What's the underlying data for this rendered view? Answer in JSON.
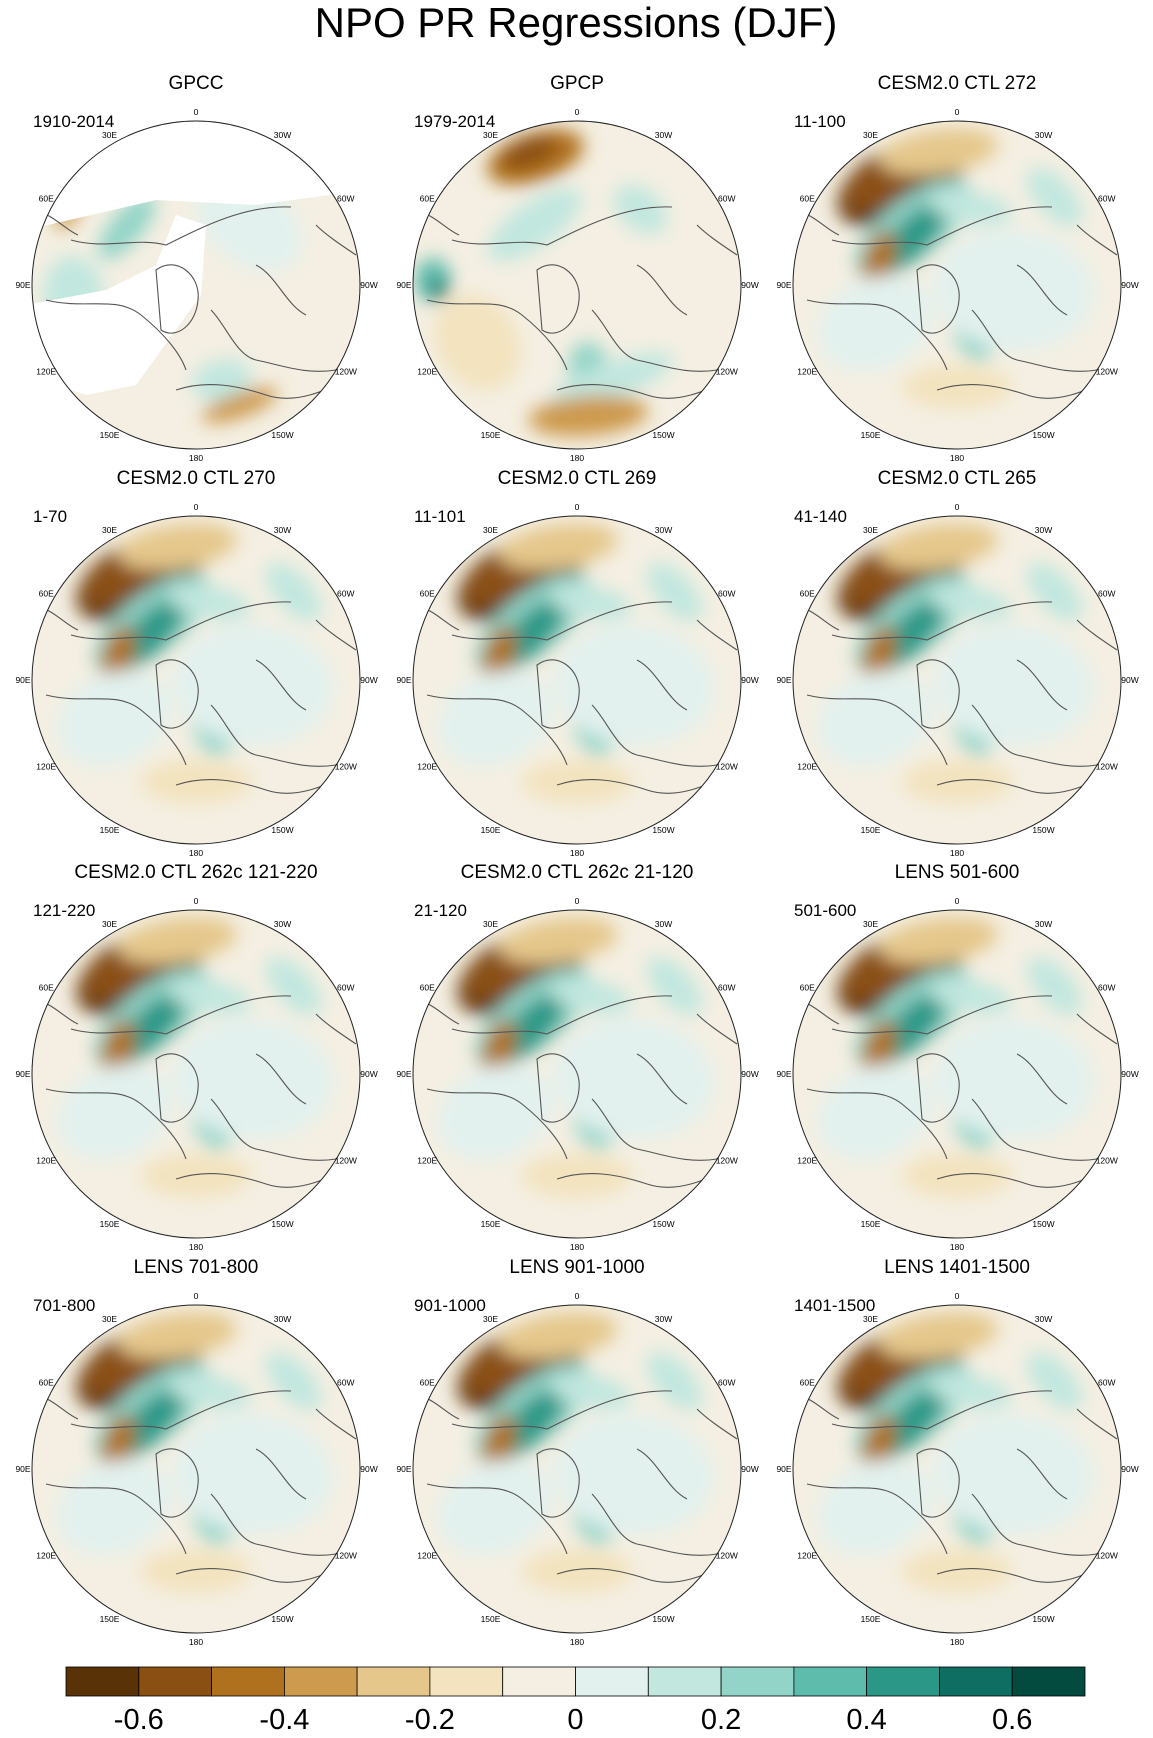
{
  "chart_data": {
    "type": "heatmap",
    "title": "NPO PR Regressions (DJF)",
    "projection": "north-polar-stereographic",
    "longitude_labels": [
      "180",
      "150E",
      "120E",
      "90E",
      "60E",
      "30E",
      "0",
      "30W",
      "60W",
      "90W",
      "120W",
      "150W"
    ],
    "longitude_degrees": [
      180,
      150,
      120,
      90,
      60,
      30,
      0,
      -30,
      -60,
      -90,
      -120,
      -150
    ],
    "panels": [
      {
        "title": "GPCC",
        "period": "1910-2014",
        "pattern": "gpcc"
      },
      {
        "title": "GPCP",
        "period": "1979-2014",
        "pattern": "gpcp"
      },
      {
        "title": "CESM2.0 CTL 272",
        "period": "11-100",
        "pattern": "model"
      },
      {
        "title": "CESM2.0 CTL 270",
        "period": "1-70",
        "pattern": "model"
      },
      {
        "title": "CESM2.0 CTL 269",
        "period": "11-101",
        "pattern": "model"
      },
      {
        "title": "CESM2.0 CTL 265",
        "period": "41-140",
        "pattern": "model"
      },
      {
        "title": "CESM2.0 CTL 262c 121-220",
        "period": "121-220",
        "pattern": "model"
      },
      {
        "title": "CESM2.0 CTL 262c 21-120",
        "period": "21-120",
        "pattern": "model"
      },
      {
        "title": "LENS 501-600",
        "period": "501-600",
        "pattern": "model"
      },
      {
        "title": "LENS 701-800",
        "period": "701-800",
        "pattern": "model"
      },
      {
        "title": "LENS 901-1000",
        "period": "901-1000",
        "pattern": "model"
      },
      {
        "title": "LENS 1401-1500",
        "period": "1401-1500",
        "pattern": "model"
      }
    ],
    "colorbar": {
      "colors": [
        "#5a3208",
        "#8a4f12",
        "#b0711f",
        "#cd9a4e",
        "#e5c78b",
        "#f3e3be",
        "#f4efe2",
        "#e2f1ee",
        "#c1e7df",
        "#93d4c8",
        "#5ebcad",
        "#2b9887",
        "#0e6e61",
        "#034a3f"
      ],
      "tick_labels": [
        "-0.6",
        "-0.4",
        "-0.2",
        "0",
        "0.2",
        "0.4",
        "0.6"
      ]
    }
  }
}
